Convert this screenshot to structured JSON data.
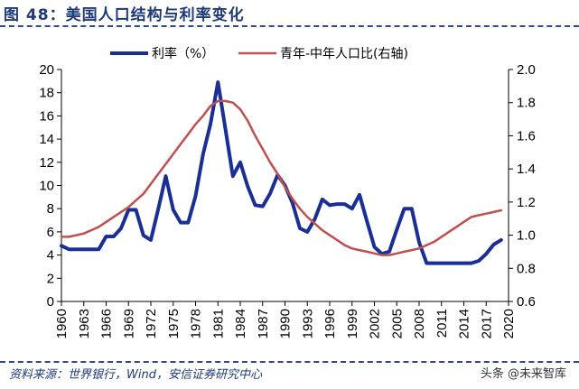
{
  "header": {
    "title": "图 48：美国人口结构与利率变化"
  },
  "footer": {
    "source": "资料来源：世界银行，Wind，安信证券研究中心",
    "watermark": "头条 @未来智库"
  },
  "colors": {
    "rate": "#1a2f96",
    "ratio": "#c0504d",
    "title": "#1f3a78"
  },
  "chart_data": {
    "type": "line",
    "title": "",
    "xlabel": "",
    "ylabel": "",
    "x_ticks": [
      "1960",
      "1963",
      "1966",
      "1969",
      "1972",
      "1975",
      "1978",
      "1981",
      "1984",
      "1987",
      "1990",
      "1993",
      "1996",
      "1999",
      "2002",
      "2005",
      "2008",
      "2011",
      "2014",
      "2017",
      "2020"
    ],
    "y_left": {
      "min": 0,
      "max": 20,
      "ticks": [
        "0",
        "2",
        "4",
        "6",
        "8",
        "10",
        "12",
        "14",
        "16",
        "18",
        "20"
      ]
    },
    "y_right": {
      "min": 0.6,
      "max": 2.0,
      "ticks": [
        "0.6",
        "0.8",
        "1.0",
        "1.2",
        "1.4",
        "1.6",
        "1.8",
        "2.0"
      ]
    },
    "legend_position": "top",
    "series": [
      {
        "name": "利率（%）",
        "axis": "left",
        "x": [
          1960,
          1961,
          1962,
          1963,
          1964,
          1965,
          1966,
          1967,
          1968,
          1969,
          1970,
          1971,
          1972,
          1973,
          1974,
          1975,
          1976,
          1977,
          1978,
          1979,
          1980,
          1981,
          1982,
          1983,
          1984,
          1985,
          1986,
          1987,
          1988,
          1989,
          1990,
          1991,
          1992,
          1993,
          1994,
          1995,
          1996,
          1997,
          1998,
          1999,
          2000,
          2001,
          2002,
          2003,
          2004,
          2005,
          2006,
          2007,
          2008,
          2009,
          2010,
          2011,
          2012,
          2013,
          2014,
          2015,
          2016,
          2017,
          2018,
          2019
        ],
        "values": [
          4.8,
          4.5,
          4.5,
          4.5,
          4.5,
          4.5,
          5.6,
          5.6,
          6.3,
          7.9,
          7.9,
          5.7,
          5.3,
          8.0,
          10.8,
          7.9,
          6.8,
          6.8,
          9.1,
          12.7,
          15.3,
          18.9,
          14.9,
          10.8,
          12.0,
          9.9,
          8.3,
          8.2,
          9.3,
          10.9,
          10.0,
          8.5,
          6.3,
          6.0,
          7.1,
          8.8,
          8.3,
          8.4,
          8.4,
          8.0,
          9.2,
          6.9,
          4.7,
          4.1,
          4.3,
          6.2,
          8.0,
          8.0,
          5.1,
          3.3,
          3.3,
          3.3,
          3.3,
          3.3,
          3.3,
          3.3,
          3.5,
          4.1,
          4.9,
          5.3
        ]
      },
      {
        "name": "青年-中年人口比(右轴)",
        "axis": "right",
        "x": [
          1960,
          1961,
          1962,
          1963,
          1964,
          1965,
          1966,
          1967,
          1968,
          1969,
          1970,
          1971,
          1972,
          1973,
          1974,
          1975,
          1976,
          1977,
          1978,
          1979,
          1980,
          1981,
          1982,
          1983,
          1984,
          1985,
          1986,
          1987,
          1988,
          1989,
          1990,
          1991,
          1992,
          1993,
          1994,
          1995,
          1996,
          1997,
          1998,
          1999,
          2000,
          2001,
          2002,
          2003,
          2004,
          2005,
          2006,
          2007,
          2008,
          2009,
          2010,
          2011,
          2012,
          2013,
          2014,
          2015,
          2016,
          2017,
          2018,
          2019
        ],
        "values": [
          0.99,
          0.99,
          1.0,
          1.01,
          1.03,
          1.05,
          1.08,
          1.11,
          1.14,
          1.17,
          1.21,
          1.25,
          1.31,
          1.37,
          1.43,
          1.49,
          1.55,
          1.61,
          1.67,
          1.72,
          1.78,
          1.81,
          1.81,
          1.8,
          1.76,
          1.69,
          1.6,
          1.52,
          1.44,
          1.37,
          1.29,
          1.22,
          1.16,
          1.11,
          1.07,
          1.03,
          1.0,
          0.97,
          0.94,
          0.92,
          0.91,
          0.9,
          0.89,
          0.88,
          0.88,
          0.89,
          0.9,
          0.91,
          0.92,
          0.94,
          0.96,
          0.99,
          1.02,
          1.05,
          1.08,
          1.11,
          1.12,
          1.13,
          1.14,
          1.15
        ]
      }
    ]
  }
}
